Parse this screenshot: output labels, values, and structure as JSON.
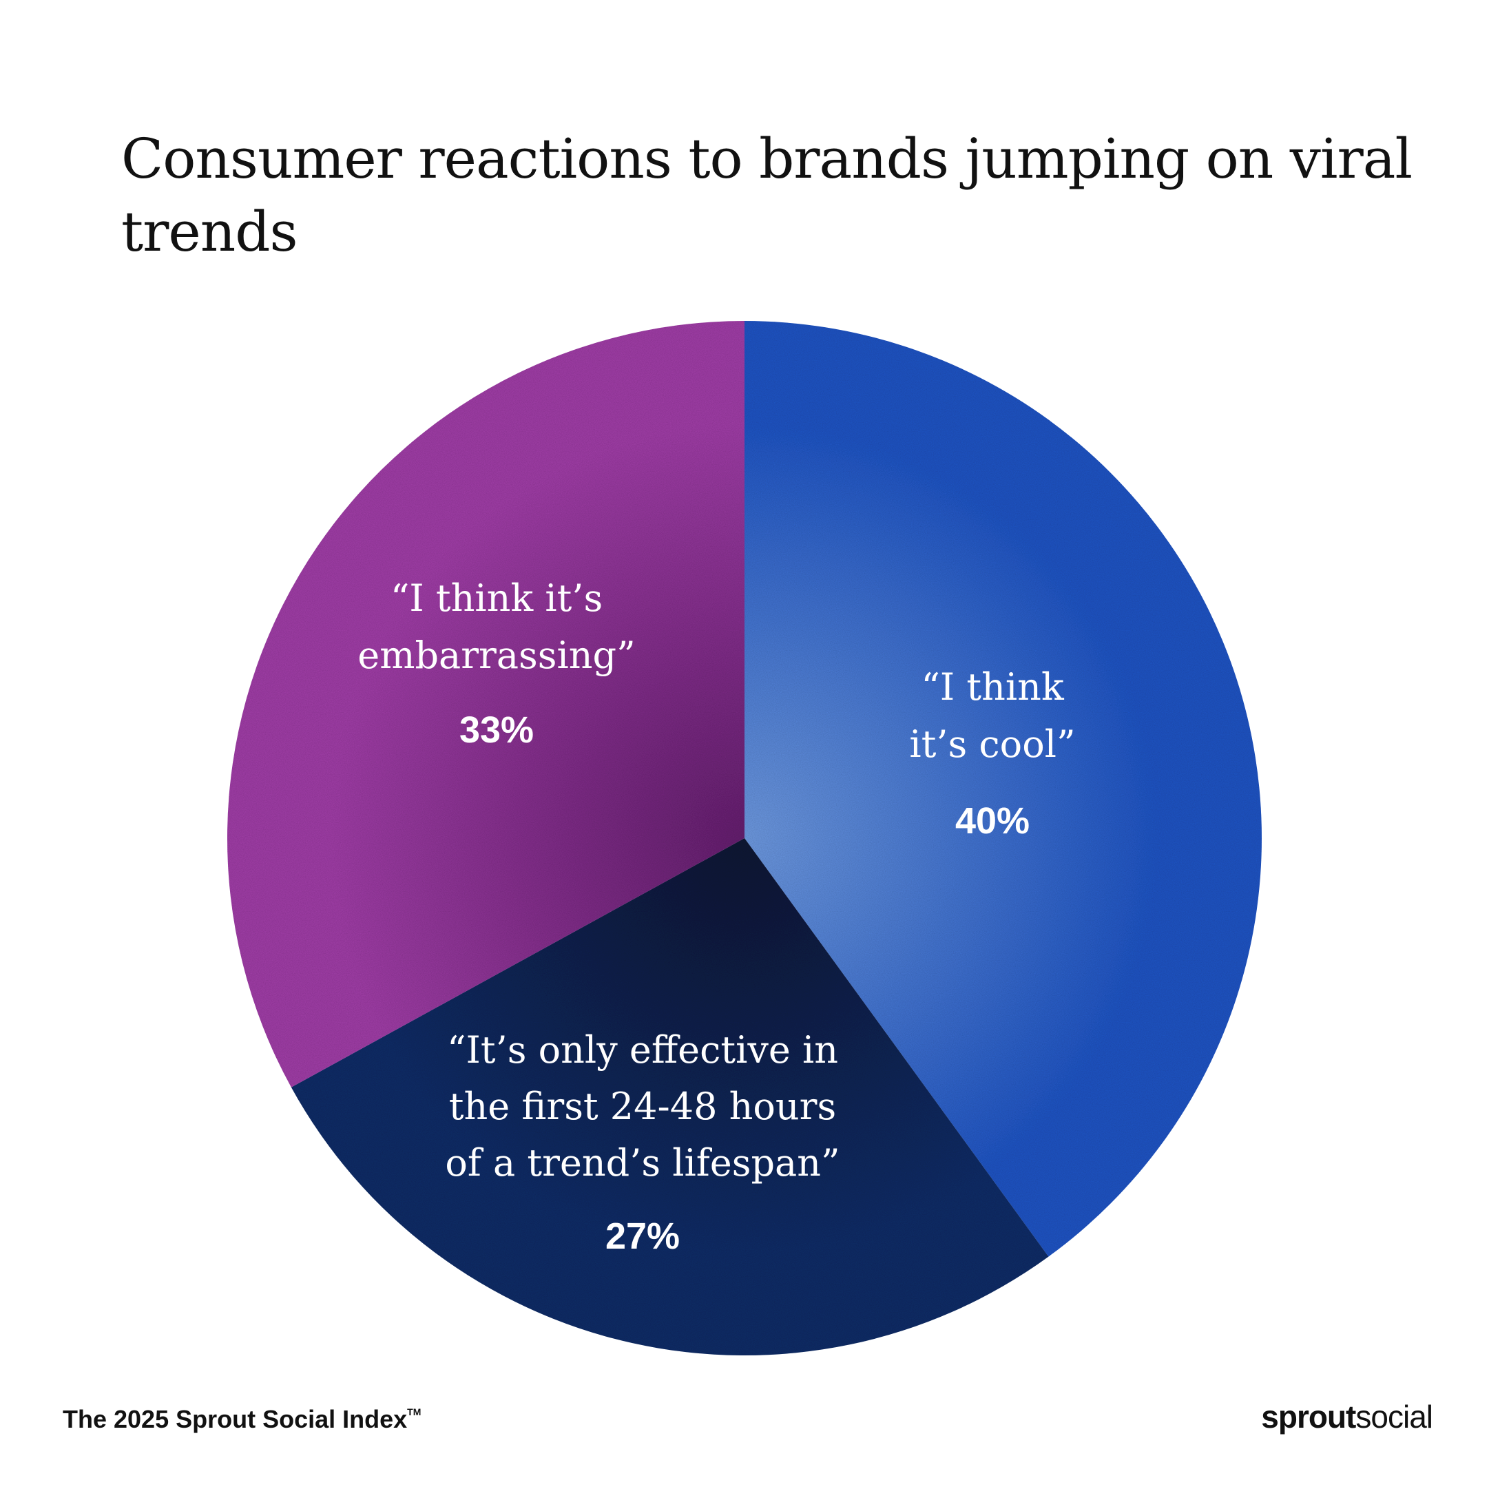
{
  "chart_data": {
    "type": "pie",
    "title": "Consumer reactions to brands jumping on viral trends",
    "start": "top",
    "direction": "clockwise",
    "slices": [
      {
        "label_lines": [
          "“I think",
          "it’s cool”"
        ],
        "value": 40,
        "value_label": "40%",
        "color": "#1f55c6",
        "center_color": "#6f9be2"
      },
      {
        "label_lines": [
          "“It’s only effective in",
          "the first 24-48 hours",
          "of a trend’s lifespan”"
        ],
        "value": 27,
        "value_label": "27%",
        "color": "#0d2d68",
        "center_color": "#0a1634"
      },
      {
        "label_lines": [
          "“I think it’s",
          "embarrassing”"
        ],
        "value": 33,
        "value_label": "33%",
        "color": "#a23ea9",
        "center_color": "#661f70"
      }
    ]
  },
  "footer": {
    "source": "The 2025 Sprout Social Index",
    "trademark": "TM",
    "logo_bold": "sprout",
    "logo_light": "social"
  }
}
